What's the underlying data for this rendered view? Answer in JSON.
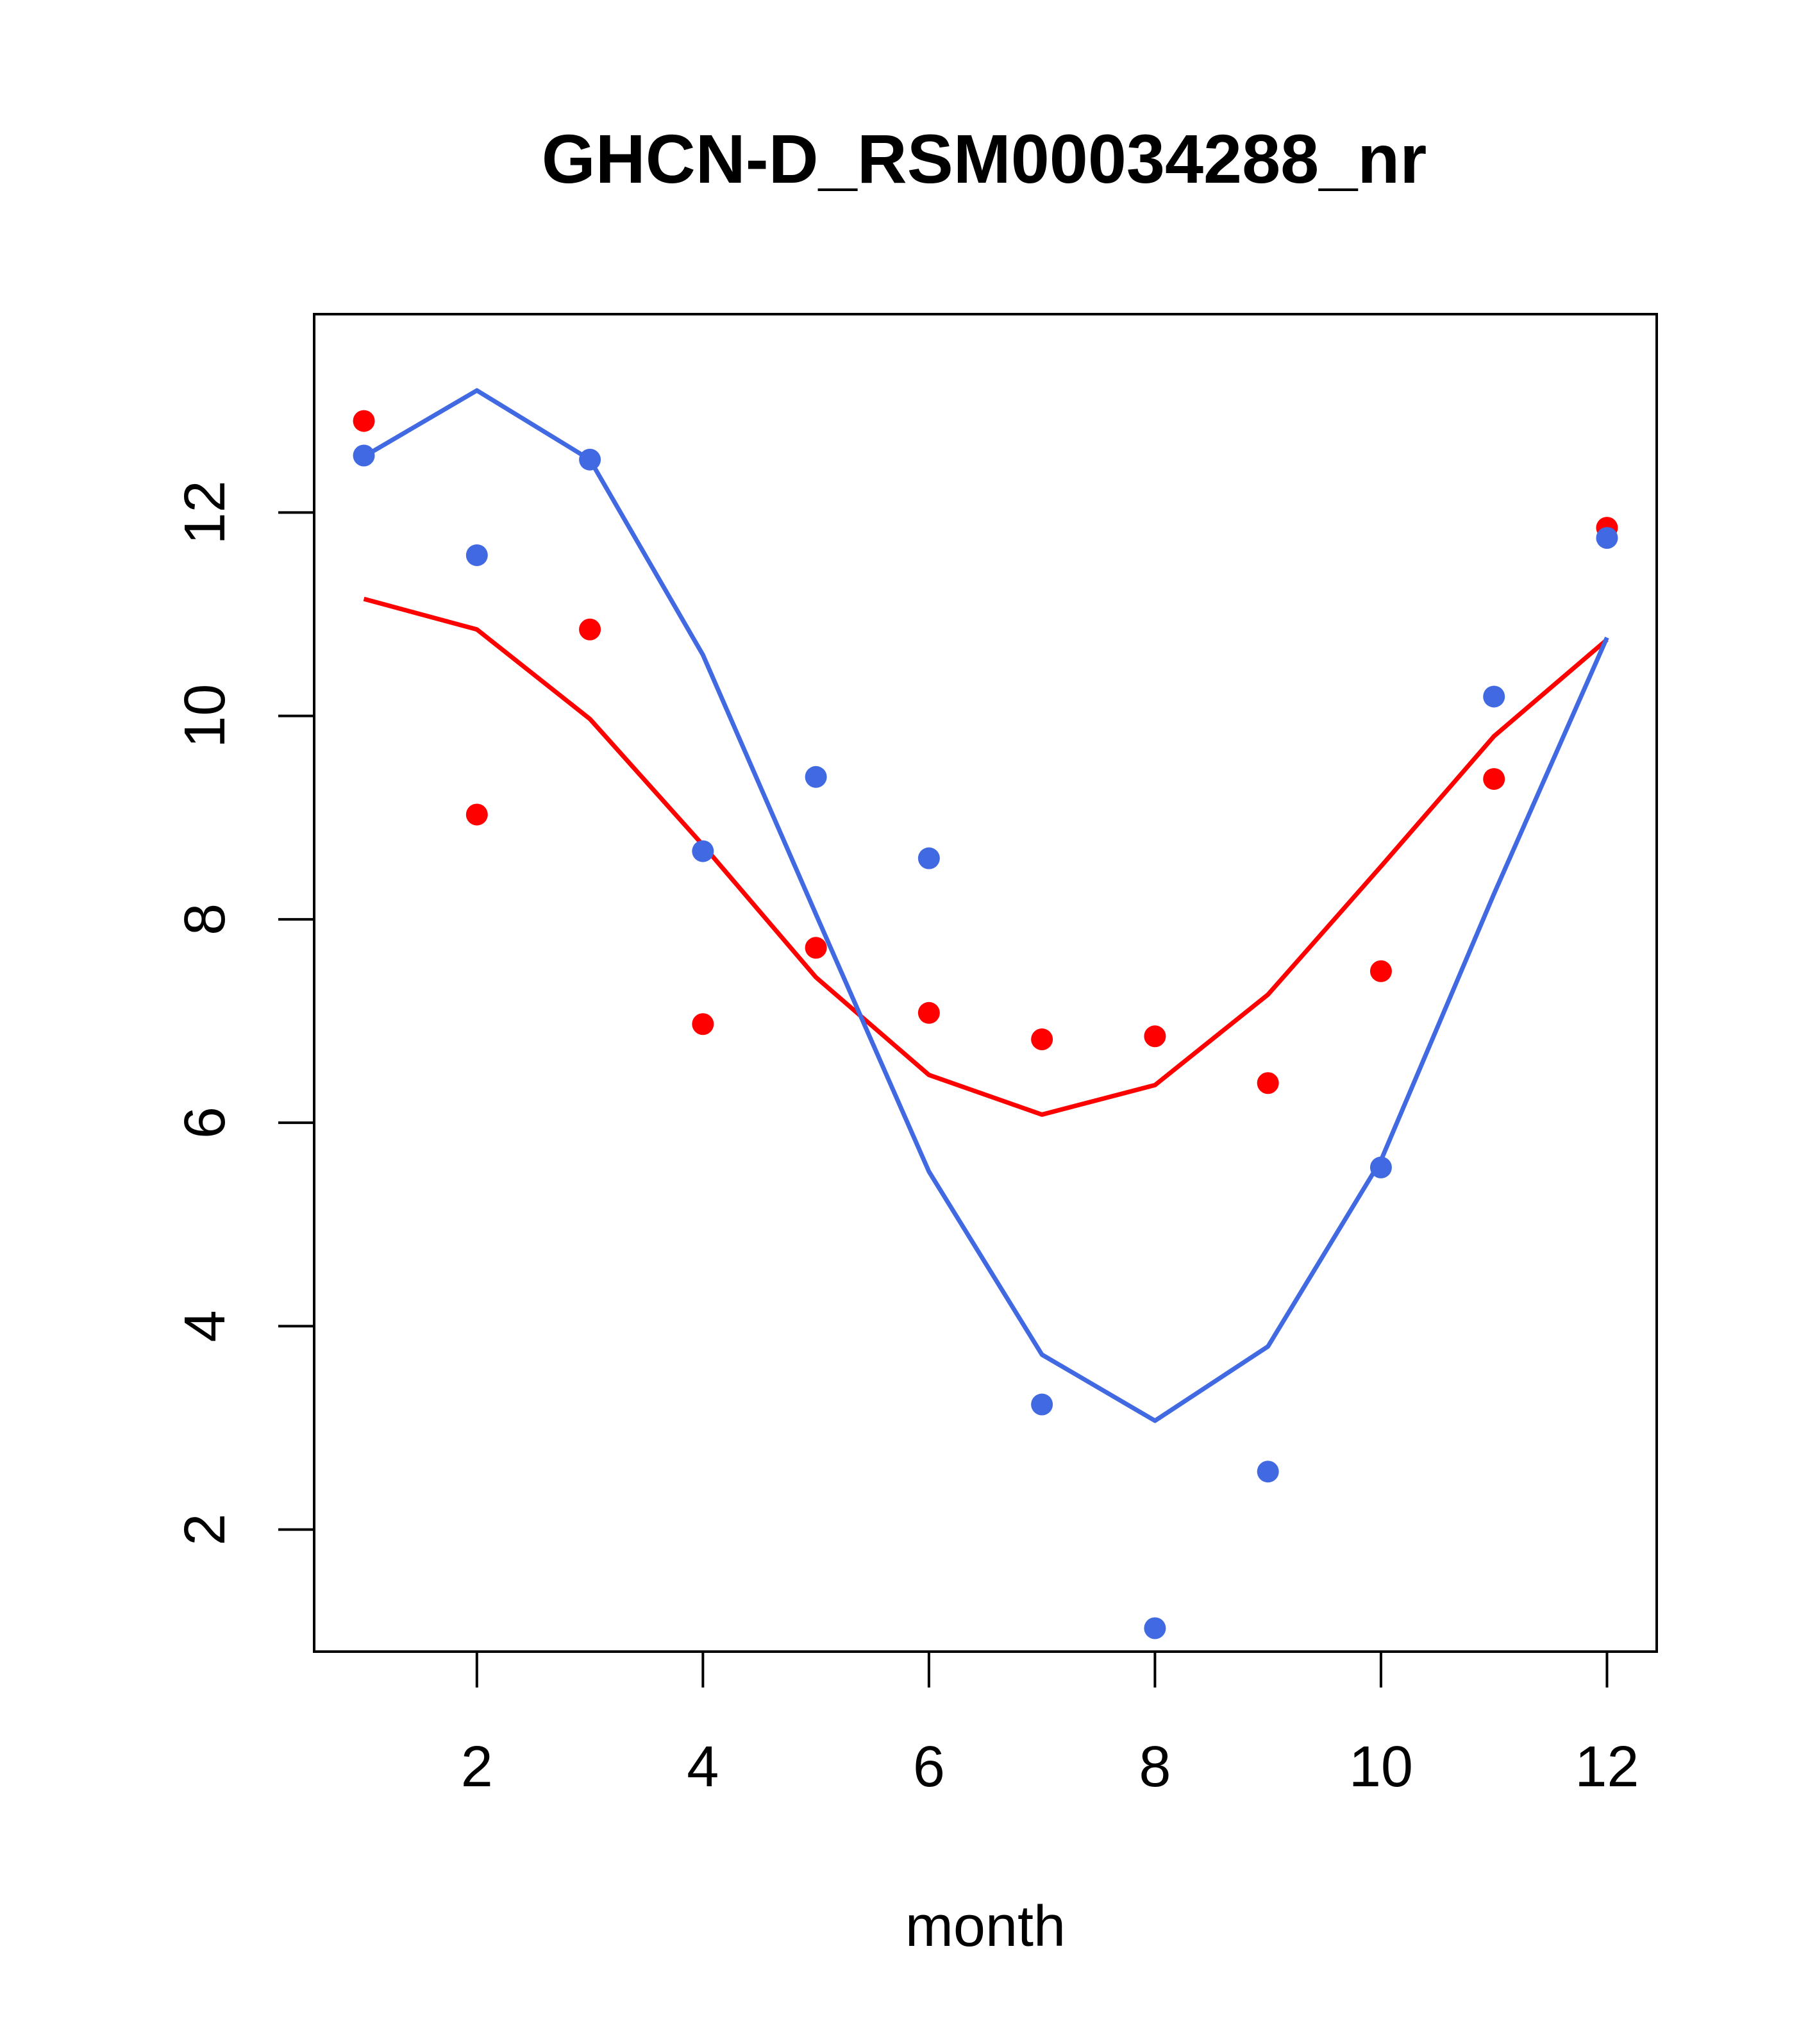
{
  "chart_data": {
    "type": "scatter",
    "title": "GHCN-D_RSM00034288_nr",
    "xlabel": "month",
    "ylabel": "",
    "xlim": [
      0.56,
      12.44
    ],
    "ylim": [
      0.8,
      13.95
    ],
    "x_ticks": [
      2,
      4,
      6,
      8,
      10,
      12
    ],
    "x_tick_labels": [
      "2",
      "4",
      "6",
      "8",
      "10",
      "12"
    ],
    "y_ticks": [
      2,
      4,
      6,
      8,
      10,
      12
    ],
    "y_tick_labels": [
      "2",
      "4",
      "6",
      "8",
      "10",
      "12"
    ],
    "grid": false,
    "x": [
      1,
      2,
      3,
      4,
      5,
      6,
      7,
      8,
      9,
      10,
      11,
      12
    ],
    "series": [
      {
        "name": "red",
        "color": "#ff0000",
        "points": [
          12.9,
          9.03,
          10.85,
          6.97,
          7.72,
          7.08,
          6.82,
          6.85,
          6.39,
          7.49,
          9.38,
          11.85
        ],
        "line": [
          11.15,
          10.85,
          9.97,
          8.73,
          7.43,
          6.47,
          6.08,
          6.37,
          7.26,
          8.52,
          9.8,
          10.75
        ]
      },
      {
        "name": "blue",
        "color": "#4169e1",
        "points": [
          12.56,
          11.58,
          12.52,
          8.67,
          9.4,
          8.6,
          3.23,
          1.03,
          2.57,
          5.56,
          10.19,
          11.75
        ],
        "line": [
          12.55,
          13.2,
          12.52,
          10.6,
          8.05,
          5.52,
          3.72,
          3.07,
          3.8,
          5.63,
          8.25,
          10.77
        ]
      }
    ]
  }
}
